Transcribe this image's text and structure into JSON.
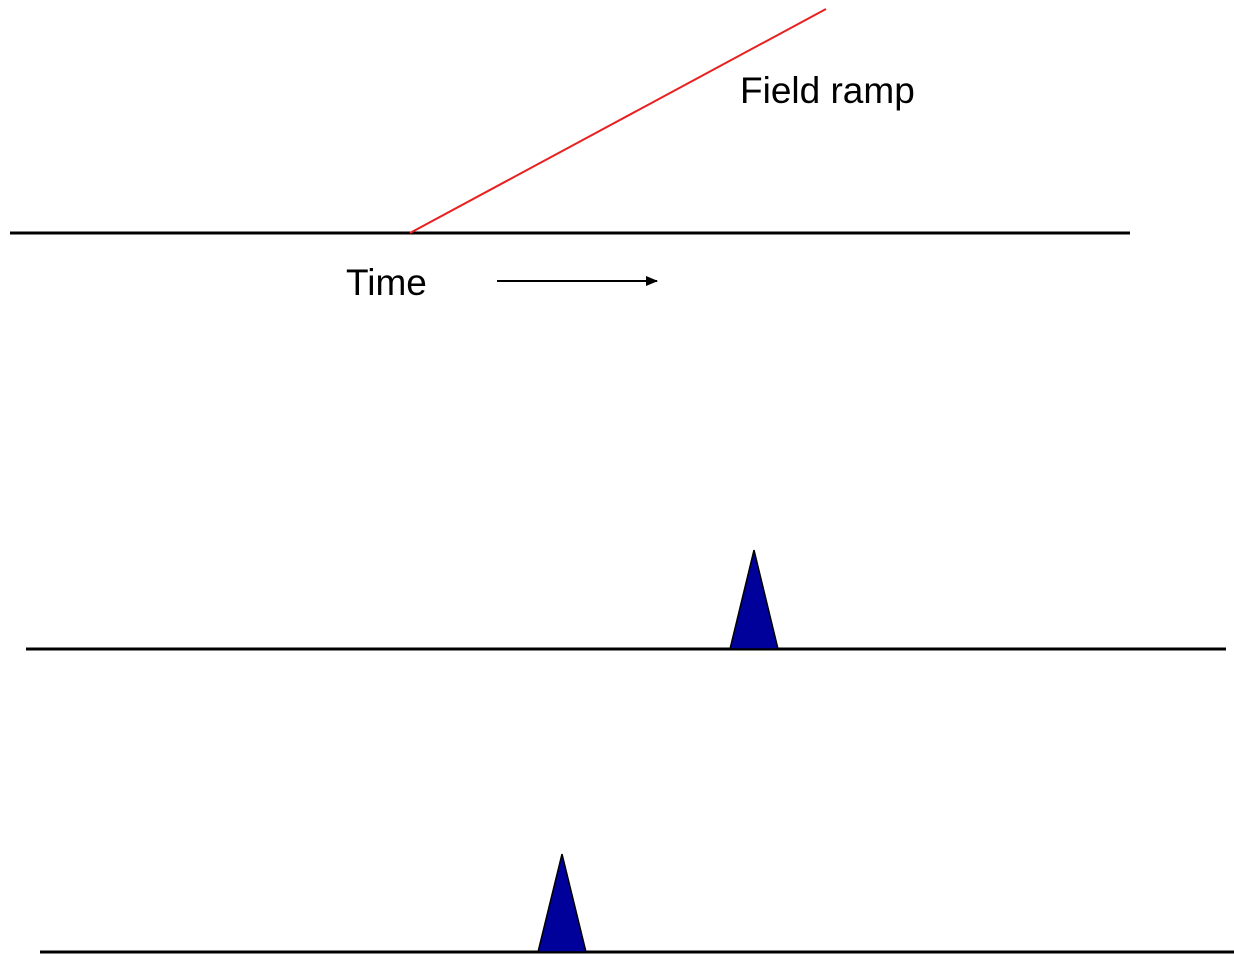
{
  "labels": {
    "field_ramp": "Field ramp",
    "time": "Time"
  },
  "colors": {
    "ramp": "#e8201f",
    "baseline": "#000000",
    "peak_fill": "#00009a",
    "peak_stroke": "#000000"
  }
}
